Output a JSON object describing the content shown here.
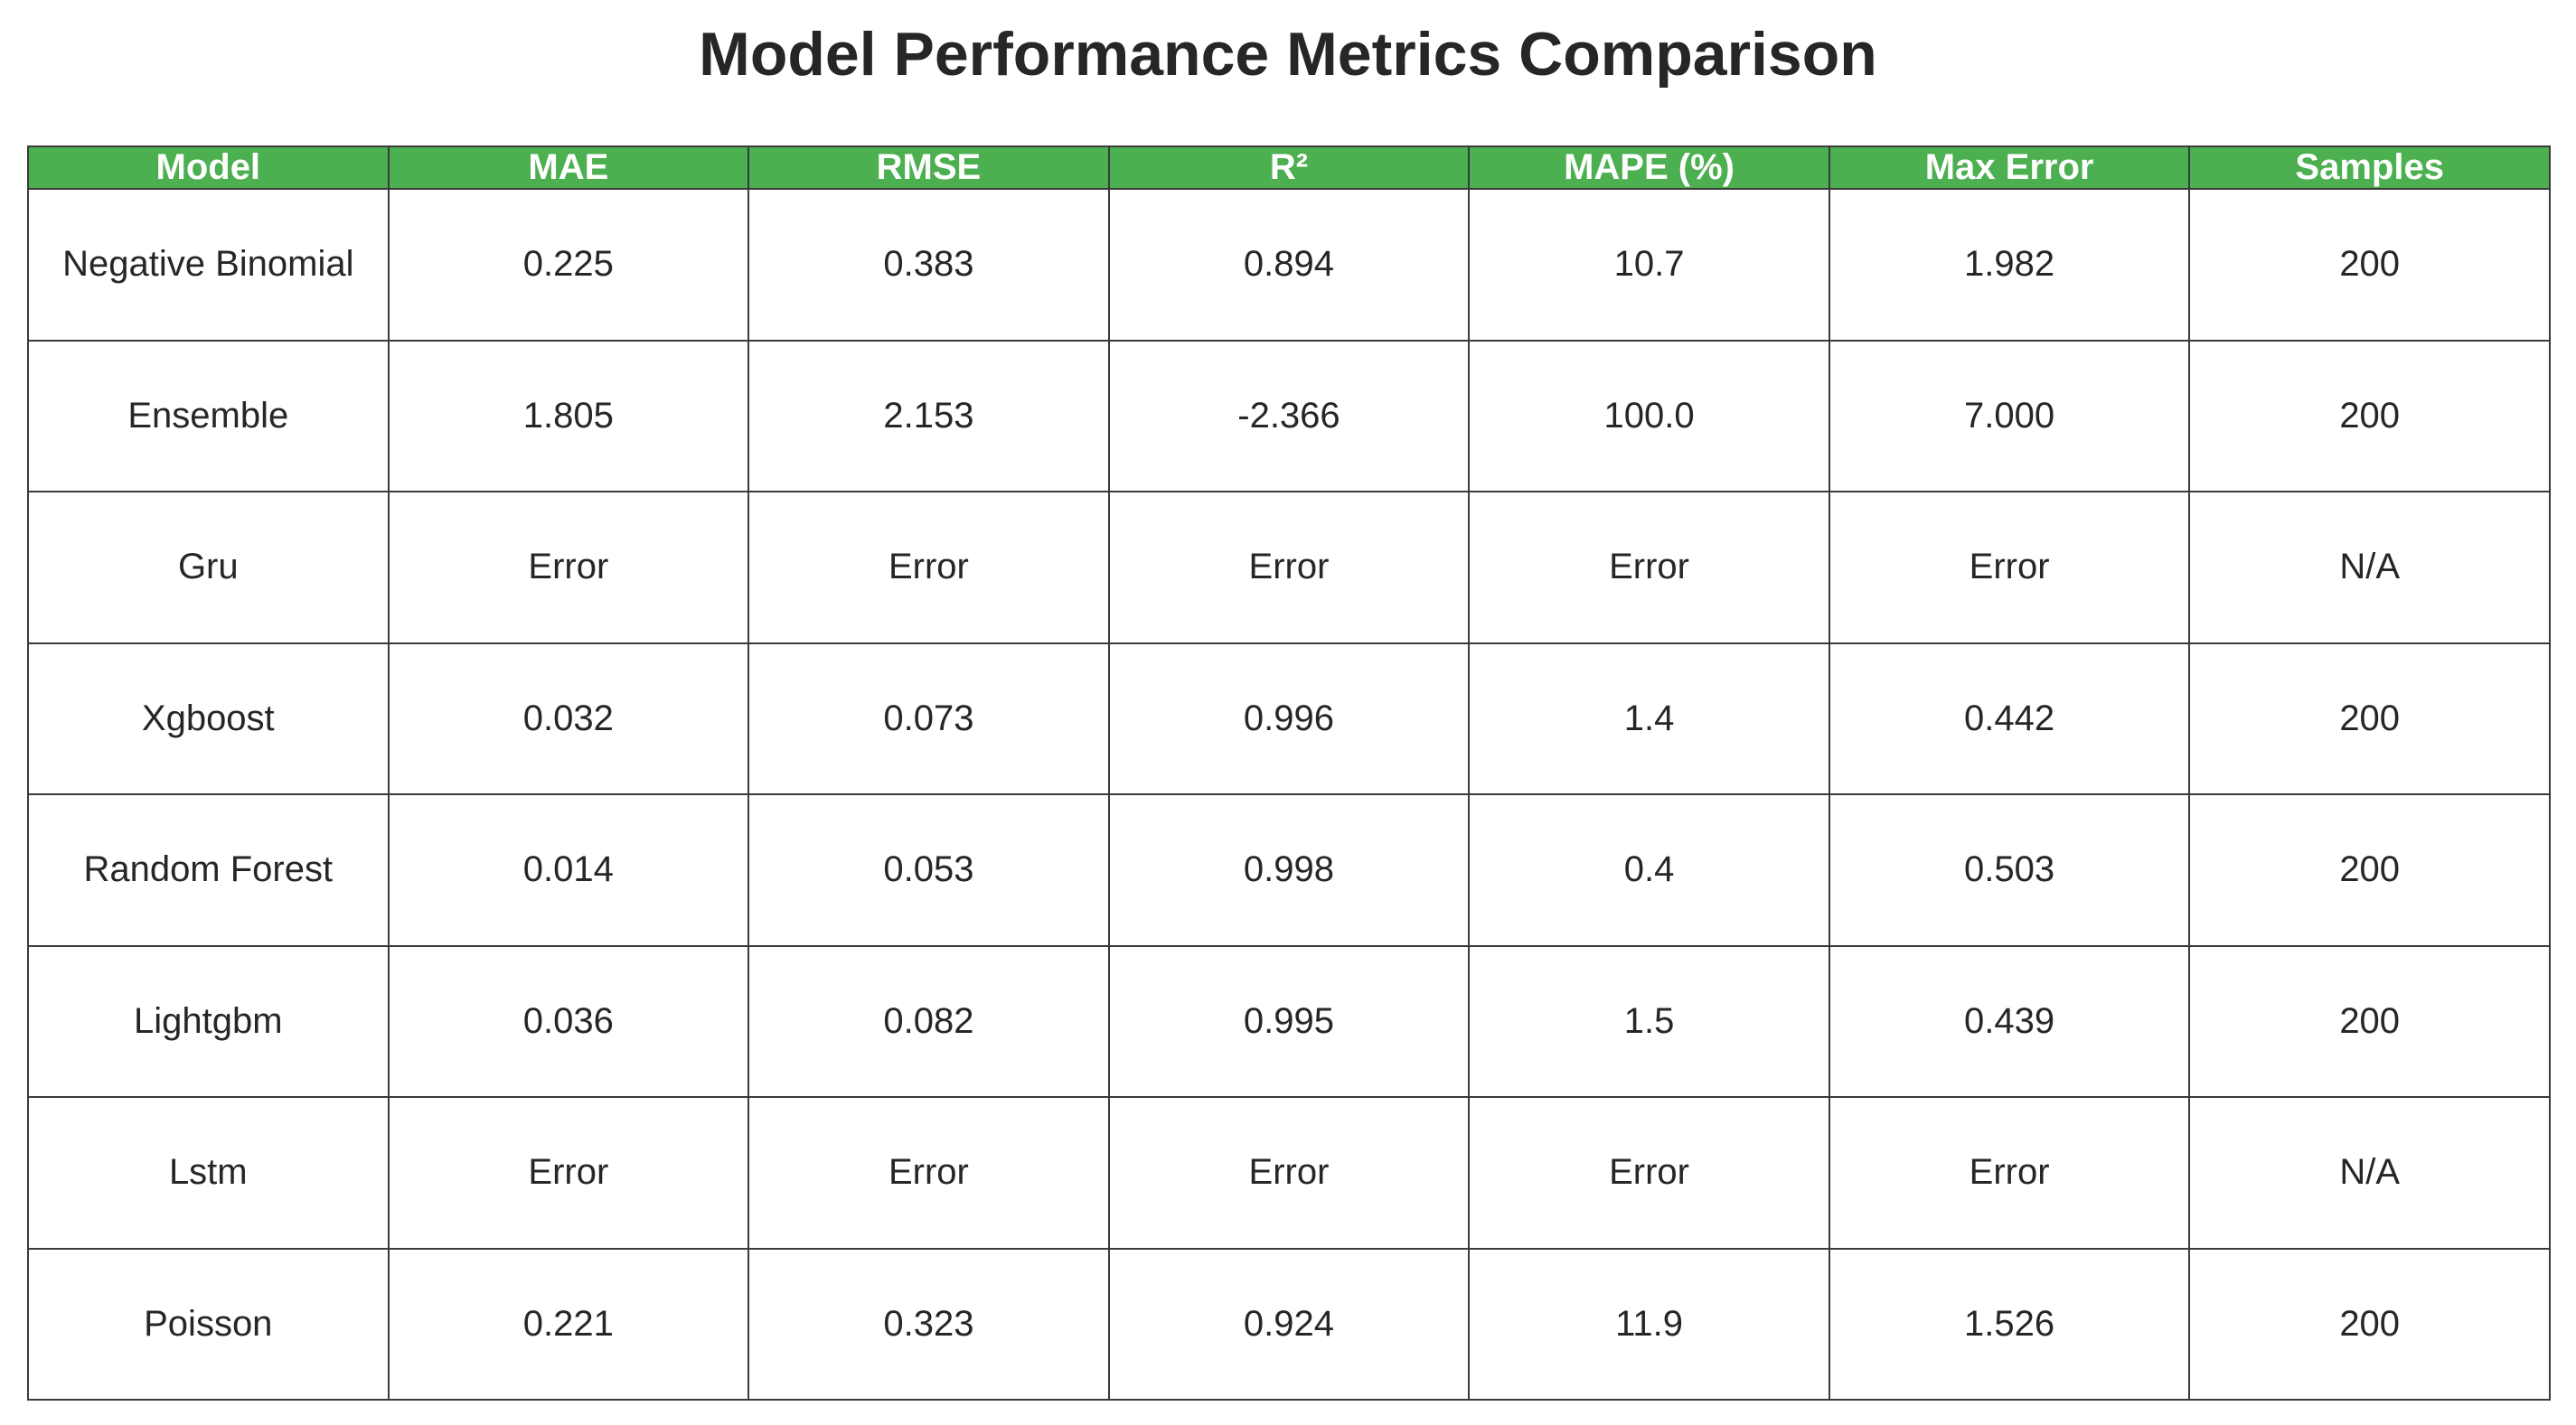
{
  "chart_data": {
    "type": "table",
    "title": "Model Performance Metrics Comparison",
    "header_color": "#4caf50",
    "columns": [
      "Model",
      "MAE",
      "RMSE",
      "R²",
      "MAPE (%)",
      "Max Error",
      "Samples"
    ],
    "rows": [
      [
        "Negative Binomial",
        "0.225",
        "0.383",
        "0.894",
        "10.7",
        "1.982",
        "200"
      ],
      [
        "Ensemble",
        "1.805",
        "2.153",
        "-2.366",
        "100.0",
        "7.000",
        "200"
      ],
      [
        "Gru",
        "Error",
        "Error",
        "Error",
        "Error",
        "Error",
        "N/A"
      ],
      [
        "Xgboost",
        "0.032",
        "0.073",
        "0.996",
        "1.4",
        "0.442",
        "200"
      ],
      [
        "Random Forest",
        "0.014",
        "0.053",
        "0.998",
        "0.4",
        "0.503",
        "200"
      ],
      [
        "Lightgbm",
        "0.036",
        "0.082",
        "0.995",
        "1.5",
        "0.439",
        "200"
      ],
      [
        "Lstm",
        "Error",
        "Error",
        "Error",
        "Error",
        "Error",
        "N/A"
      ],
      [
        "Poisson",
        "0.221",
        "0.323",
        "0.924",
        "11.9",
        "1.526",
        "200"
      ]
    ]
  }
}
